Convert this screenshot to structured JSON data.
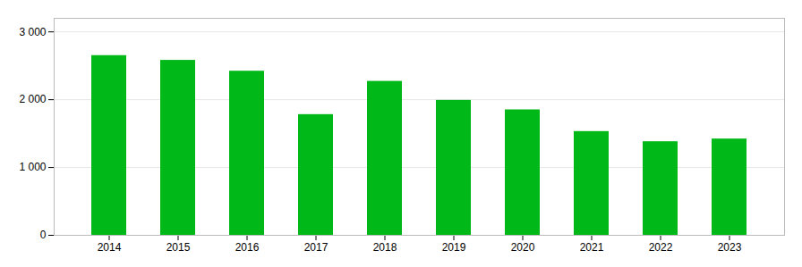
{
  "chart_data": {
    "type": "bar",
    "categories": [
      "2014",
      "2015",
      "2016",
      "2017",
      "2018",
      "2019",
      "2020",
      "2021",
      "2022",
      "2023"
    ],
    "values": [
      2650,
      2580,
      2420,
      1780,
      2270,
      1990,
      1850,
      1530,
      1380,
      1420
    ],
    "color": "#00b818",
    "ylim": [
      0,
      3200
    ],
    "yticks": [
      0,
      {
        "value": 1000,
        "label": "1 000"
      },
      {
        "value": 2000,
        "label": "2 000"
      },
      {
        "value": 3000,
        "label": "3 000"
      }
    ],
    "grid": true
  }
}
